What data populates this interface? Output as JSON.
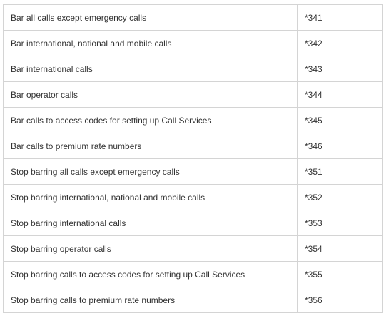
{
  "table": {
    "rows": [
      {
        "description": "Bar all calls except emergency calls",
        "code": "*341"
      },
      {
        "description": "Bar international, national and mobile calls",
        "code": "*342"
      },
      {
        "description": "Bar international calls",
        "code": "*343"
      },
      {
        "description": "Bar operator calls",
        "code": "*344"
      },
      {
        "description": "Bar calls to access codes for setting up Call Services",
        "code": "*345"
      },
      {
        "description": "Bar calls to premium rate numbers",
        "code": "*346"
      },
      {
        "description": "Stop barring all calls except emergency calls",
        "code": "*351"
      },
      {
        "description": "Stop barring international, national and mobile calls",
        "code": "*352"
      },
      {
        "description": "Stop barring international calls",
        "code": "*353"
      },
      {
        "description": "Stop barring operator calls",
        "code": "*354"
      },
      {
        "description": "Stop barring calls to access codes for setting up Call Services",
        "code": "*355"
      },
      {
        "description": "Stop barring calls to premium rate numbers",
        "code": "*356"
      }
    ]
  }
}
